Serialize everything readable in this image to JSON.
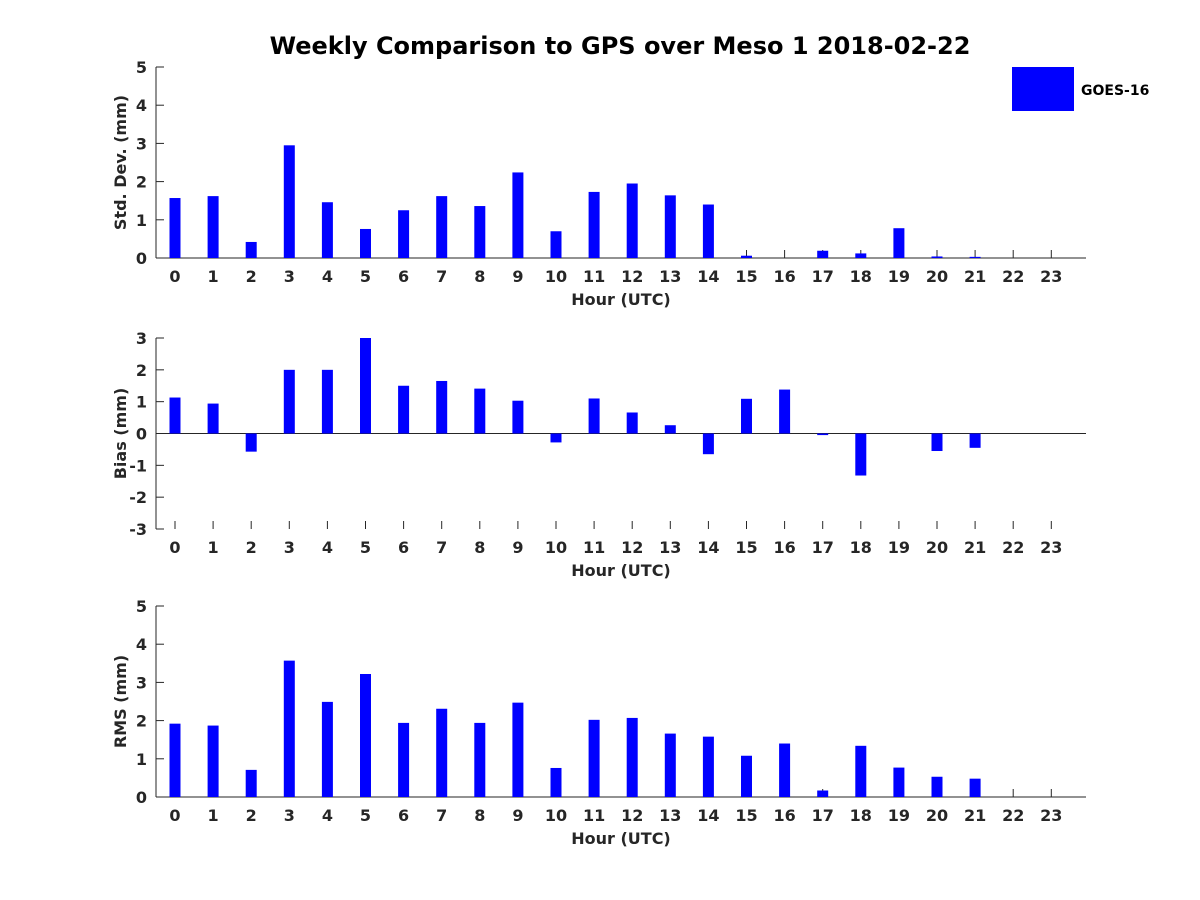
{
  "title": "Weekly Comparison to GPS over Meso 1 2018-02-22",
  "legend": {
    "label": "GOES-16",
    "position": "top-right",
    "color": "#0000ff"
  },
  "bar_color": "#0000ff",
  "chart_data": [
    {
      "type": "bar",
      "xlabel": "Hour (UTC)",
      "ylabel": "Std. Dev. (mm)",
      "ylim": [
        0,
        5
      ],
      "yticks": [
        0,
        1,
        2,
        3,
        4,
        5
      ],
      "grid": false,
      "categories": [
        "0",
        "1",
        "2",
        "3",
        "4",
        "5",
        "6",
        "7",
        "8",
        "9",
        "10",
        "11",
        "12",
        "13",
        "14",
        "15",
        "16",
        "17",
        "18",
        "19",
        "20",
        "21",
        "22",
        "23"
      ],
      "series": [
        {
          "name": "GOES-16",
          "values": [
            1.57,
            1.62,
            0.42,
            2.95,
            1.46,
            0.76,
            1.25,
            1.62,
            1.36,
            2.24,
            0.7,
            1.73,
            1.95,
            1.64,
            1.4,
            0.06,
            0,
            0.19,
            0.12,
            0.78,
            0.04,
            0.03,
            0,
            0
          ]
        }
      ]
    },
    {
      "type": "bar",
      "xlabel": "Hour (UTC)",
      "ylabel": "Bias (mm)",
      "ylim": [
        -3,
        3
      ],
      "yticks": [
        -3,
        -2,
        -1,
        0,
        1,
        2,
        3
      ],
      "grid": false,
      "categories": [
        "0",
        "1",
        "2",
        "3",
        "4",
        "5",
        "6",
        "7",
        "8",
        "9",
        "10",
        "11",
        "12",
        "13",
        "14",
        "15",
        "16",
        "17",
        "18",
        "19",
        "20",
        "21",
        "22",
        "23"
      ],
      "series": [
        {
          "name": "GOES-16",
          "values": [
            1.13,
            0.94,
            -0.57,
            2.0,
            2.0,
            3.0,
            1.5,
            1.65,
            1.41,
            1.03,
            -0.28,
            1.1,
            0.66,
            0.26,
            -0.65,
            1.09,
            1.38,
            -0.05,
            -1.32,
            0,
            -0.55,
            -0.45,
            0,
            0
          ]
        }
      ]
    },
    {
      "type": "bar",
      "xlabel": "Hour (UTC)",
      "ylabel": "RMS (mm)",
      "ylim": [
        0,
        5
      ],
      "yticks": [
        0,
        1,
        2,
        3,
        4,
        5
      ],
      "grid": false,
      "categories": [
        "0",
        "1",
        "2",
        "3",
        "4",
        "5",
        "6",
        "7",
        "8",
        "9",
        "10",
        "11",
        "12",
        "13",
        "14",
        "15",
        "16",
        "17",
        "18",
        "19",
        "20",
        "21",
        "22",
        "23"
      ],
      "series": [
        {
          "name": "GOES-16",
          "values": [
            1.92,
            1.87,
            0.71,
            3.57,
            2.49,
            3.22,
            1.94,
            2.31,
            1.94,
            2.47,
            0.76,
            2.02,
            2.07,
            1.66,
            1.58,
            1.08,
            1.4,
            0.17,
            1.34,
            0.77,
            0.53,
            0.48,
            0,
            0
          ]
        }
      ]
    }
  ]
}
